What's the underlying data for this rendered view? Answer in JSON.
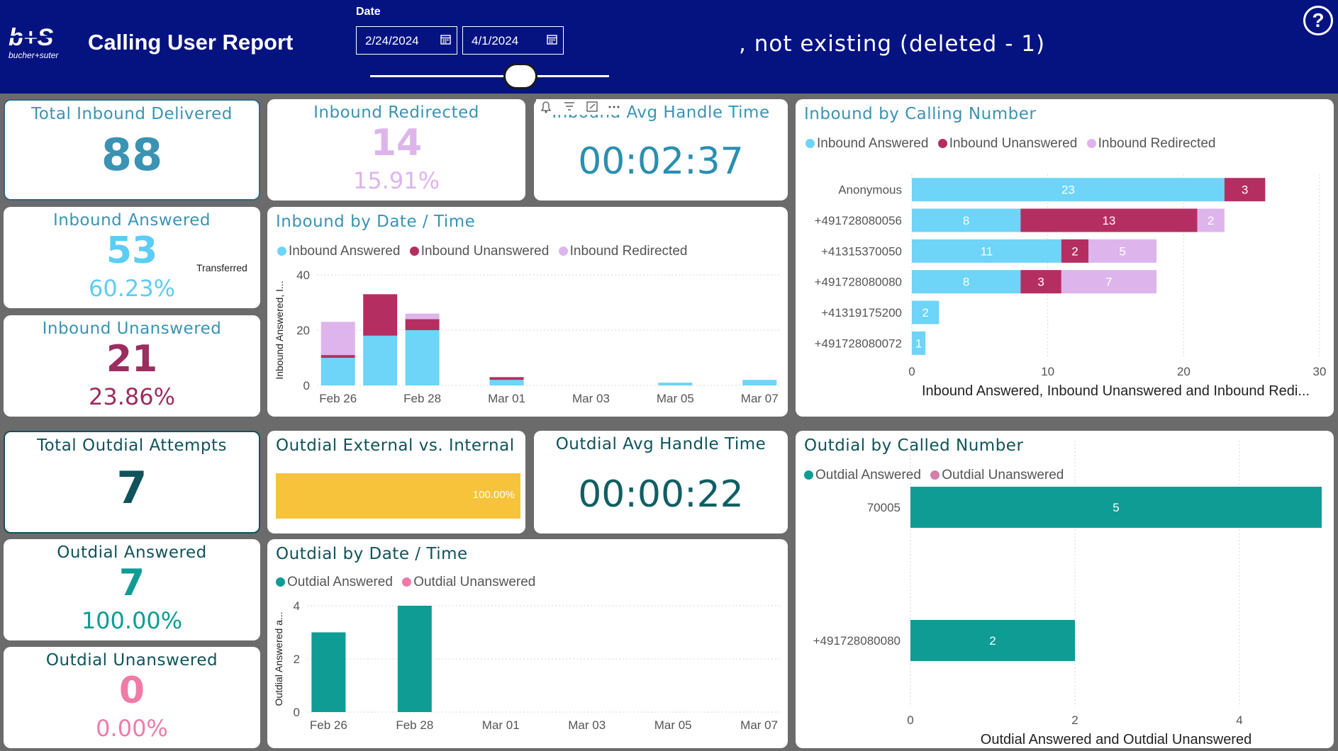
{
  "header": {
    "brand_text": "bucher+suter",
    "title": "Calling User Report",
    "date_label": "Date",
    "date_from": "2/24/2024",
    "date_to": "4/1/2024",
    "banner": ", not existing (deleted - 1)",
    "help_symbol": "?",
    "slider_level": 0.63
  },
  "colors": {
    "header_bg": "#051381",
    "inbound_answered": "#6ed4f8",
    "inbound_unanswered": "#b52e62",
    "inbound_redirected": "#ddb5ec",
    "outdial_answered": "#0e9c95",
    "outdial_unanswered_legend": "#d47fa6",
    "outdial_unanswered_pink": "#f07ba6",
    "gold": "#f6c33b"
  },
  "kpis": {
    "total_inbound_delivered": {
      "title": "Total Inbound Delivered",
      "value": "88"
    },
    "inbound_redirected": {
      "title": "Inbound Redirected",
      "value": "14",
      "percent": "15.91%"
    },
    "inbound_avg_handle": {
      "title": "Inbound Avg Handle Time",
      "value": "00:02:37"
    },
    "inbound_answered": {
      "title": "Inbound Answered",
      "value": "53",
      "note": "Transferred",
      "percent": "60.23%"
    },
    "inbound_unanswered": {
      "title": "Inbound Unanswered",
      "value": "21",
      "percent": "23.86%"
    },
    "total_outdial_attempts": {
      "title": "Total Outdial Attempts",
      "value": "7"
    },
    "outdial_avg_handle": {
      "title": "Outdial Avg Handle Time",
      "value": "00:00:22"
    },
    "outdial_answered": {
      "title": "Outdial Answered",
      "value": "7",
      "percent": "100.00%"
    },
    "outdial_unanswered": {
      "title": "Outdial Unanswered",
      "value": "0",
      "percent": "0.00%"
    }
  },
  "outdial_ext_int": {
    "title": "Outdial External vs. Internal",
    "label": "100.00%",
    "fraction": 1.0
  },
  "legends": {
    "inbound": [
      "Inbound Answered",
      "Inbound Unanswered",
      "Inbound Redirected"
    ],
    "outdial": [
      "Outdial Answered",
      "Outdial Unanswered"
    ]
  },
  "chart_data": [
    {
      "id": "inbound_by_date",
      "type": "bar",
      "stacked": true,
      "title": "Inbound by Date / Time",
      "ylabel": "Inbound Answered, I...",
      "xlabel": "",
      "ylim": [
        0,
        40
      ],
      "yticks": [
        0,
        20,
        40
      ],
      "categories": [
        "Feb 26",
        "Feb 27",
        "Feb 28",
        "Feb 29",
        "Mar 01",
        "Mar 02",
        "Mar 03",
        "Mar 04",
        "Mar 05",
        "Mar 06",
        "Mar 07"
      ],
      "tick_labels": [
        "Feb 26",
        "Feb 28",
        "Mar 01",
        "Mar 03",
        "Mar 05",
        "Mar 07"
      ],
      "series": [
        {
          "name": "Inbound Answered",
          "values": [
            10,
            18,
            20,
            0,
            2,
            0,
            0,
            0,
            1,
            0,
            2
          ]
        },
        {
          "name": "Inbound Unanswered",
          "values": [
            1,
            15,
            4,
            0,
            1,
            0,
            0,
            0,
            0,
            0,
            0
          ]
        },
        {
          "name": "Inbound Redirected",
          "values": [
            12,
            0,
            2,
            0,
            0,
            0,
            0,
            0,
            0,
            0,
            0
          ]
        }
      ]
    },
    {
      "id": "inbound_by_number",
      "type": "bar",
      "orientation": "horizontal",
      "stacked": true,
      "title": "Inbound by Calling Number",
      "xlabel": "Inbound Answered, Inbound Unanswered and Inbound Redi...",
      "xlim": [
        0,
        30
      ],
      "xticks": [
        0,
        10,
        20,
        30
      ],
      "categories": [
        "Anonymous",
        "+491728080056",
        "+41315370050",
        "+491728080080",
        "+41319175200",
        "+491728080072"
      ],
      "series": [
        {
          "name": "Inbound Answered",
          "values": [
            23,
            8,
            11,
            8,
            2,
            1
          ]
        },
        {
          "name": "Inbound Unanswered",
          "values": [
            3,
            13,
            2,
            3,
            0,
            0
          ]
        },
        {
          "name": "Inbound Redirected",
          "values": [
            0,
            2,
            5,
            7,
            0,
            0
          ]
        }
      ]
    },
    {
      "id": "outdial_by_date",
      "type": "bar",
      "stacked": true,
      "title": "Outdial by Date / Time",
      "ylabel": "Outdial Answered a...",
      "xlabel": "",
      "ylim": [
        0,
        4
      ],
      "yticks": [
        0,
        2,
        4
      ],
      "categories": [
        "Feb 26",
        "Feb 27",
        "Feb 28",
        "Feb 29",
        "Mar 01",
        "Mar 02",
        "Mar 03",
        "Mar 04",
        "Mar 05",
        "Mar 06",
        "Mar 07"
      ],
      "tick_labels": [
        "Feb 26",
        "Feb 28",
        "Mar 01",
        "Mar 03",
        "Mar 05",
        "Mar 07"
      ],
      "series": [
        {
          "name": "Outdial Answered",
          "values": [
            3,
            0,
            4,
            0,
            0,
            0,
            0,
            0,
            0,
            0,
            0
          ]
        },
        {
          "name": "Outdial Unanswered",
          "values": [
            0,
            0,
            0,
            0,
            0,
            0,
            0,
            0,
            0,
            0,
            0
          ]
        }
      ]
    },
    {
      "id": "outdial_by_number",
      "type": "bar",
      "orientation": "horizontal",
      "stacked": true,
      "title": "Outdial by Called Number",
      "xlabel": "Outdial Answered and Outdial Unanswered",
      "xlim": [
        0,
        5
      ],
      "xticks": [
        0,
        2,
        4
      ],
      "categories": [
        "70005",
        "+491728080080"
      ],
      "series": [
        {
          "name": "Outdial Answered",
          "values": [
            5,
            2
          ]
        },
        {
          "name": "Outdial Unanswered",
          "values": [
            0,
            0
          ]
        }
      ]
    }
  ]
}
